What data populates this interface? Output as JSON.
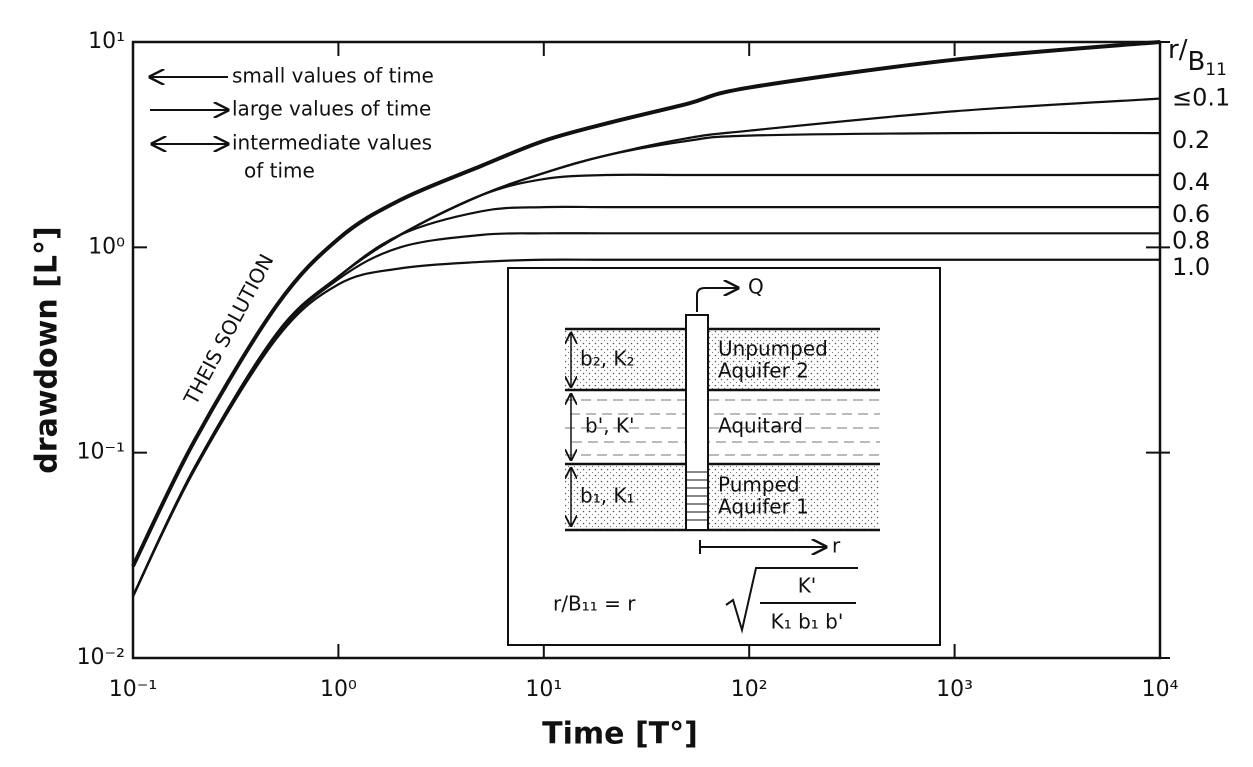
{
  "chart_data": {
    "type": "line",
    "xlabel": "Time [T°]",
    "ylabel": "drawdown [L°]",
    "log_x": true,
    "log_y": true,
    "xlim": [
      0.1,
      10000
    ],
    "ylim": [
      0.01,
      10
    ],
    "xticks": [
      {
        "value": 0.1,
        "label": "10⁻¹"
      },
      {
        "value": 1,
        "label": "10⁰"
      },
      {
        "value": 10,
        "label": "10¹"
      },
      {
        "value": 100,
        "label": "10²"
      },
      {
        "value": 1000,
        "label": "10³"
      },
      {
        "value": 10000,
        "label": "10⁴"
      }
    ],
    "yticks": [
      {
        "value": 0.01,
        "label": "10⁻²"
      },
      {
        "value": 0.1,
        "label": "10⁻¹"
      },
      {
        "value": 1,
        "label": "10⁰"
      },
      {
        "value": 10,
        "label": "10¹"
      }
    ],
    "series_label": [
      "r/",
      "B",
      "11"
    ],
    "legend": [
      "small values of time",
      "large values of time",
      "intermediate values",
      "of time"
    ],
    "x": [
      0.1,
      0.2,
      0.5,
      1,
      2,
      5,
      10,
      20,
      50,
      100,
      1000,
      10000
    ],
    "series": [
      {
        "name": "THEIS SOLUTION",
        "color": "#111",
        "values": [
          0.028,
          0.115,
          0.52,
          1.1,
          1.7,
          2.5,
          3.3,
          4.0,
          5.0,
          6.0,
          8.2,
          10
        ]
      },
      {
        "name": "≤0.1",
        "color": "#111",
        "values": [
          0.02,
          0.085,
          0.38,
          0.72,
          1.15,
          1.8,
          2.3,
          2.8,
          3.4,
          3.7,
          4.6,
          5.3
        ]
      },
      {
        "name": "0.2",
        "color": "#111",
        "values": [
          0.02,
          0.085,
          0.38,
          0.72,
          1.15,
          1.8,
          2.3,
          2.8,
          3.3,
          3.5,
          3.6,
          3.6
        ]
      },
      {
        "name": "0.4",
        "color": "#111",
        "values": [
          0.02,
          0.085,
          0.38,
          0.72,
          1.15,
          1.8,
          2.15,
          2.25,
          2.25,
          2.25,
          2.25,
          2.25
        ]
      },
      {
        "name": "0.6",
        "color": "#111",
        "values": [
          0.02,
          0.085,
          0.38,
          0.72,
          1.15,
          1.5,
          1.57,
          1.57,
          1.57,
          1.57,
          1.57,
          1.57
        ]
      },
      {
        "name": "0.8",
        "color": "#111",
        "values": [
          0.02,
          0.085,
          0.37,
          0.7,
          1.0,
          1.15,
          1.17,
          1.17,
          1.17,
          1.17,
          1.17,
          1.17
        ]
      },
      {
        "name": "1.0",
        "color": "#111",
        "values": [
          0.02,
          0.083,
          0.36,
          0.66,
          0.79,
          0.85,
          0.87,
          0.87,
          0.87,
          0.87,
          0.87,
          0.87
        ]
      }
    ]
  },
  "inset": {
    "q": "Q",
    "b2k2": "b₂, K₂",
    "unpumped": [
      "Unpumped",
      "Aquifer 2"
    ],
    "bk": "b', K'",
    "aquitard": "Aquitard",
    "b1k1": "b₁, K₁",
    "pumped": [
      "Pumped",
      "Aquifer 1"
    ],
    "r": "r",
    "formula": {
      "lhs": "r/B₁₁ = r",
      "numerator": "K'",
      "denominator": "K₁ b₁ b'"
    }
  }
}
